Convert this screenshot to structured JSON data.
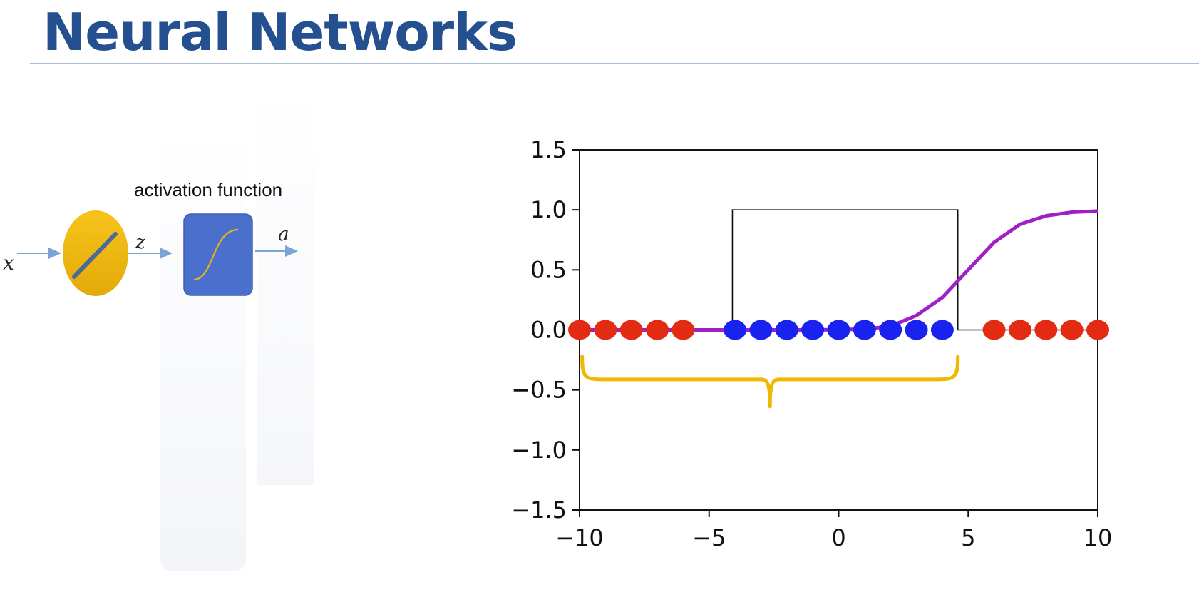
{
  "slide": {
    "title": "Neural Networks"
  },
  "diagram": {
    "input_label": "x",
    "linear_output_label": "z",
    "activation_label": "activation function",
    "output_label": "a",
    "colors": {
      "linear_node": "#f2bd10",
      "activation_box": "#4a6fcc",
      "arrow": "#7aa3d6",
      "sigmoid_curve": "#e6b422"
    }
  },
  "chart_data": {
    "type": "scatter",
    "xlim": [
      -10,
      10
    ],
    "ylim": [
      -1.5,
      1.5
    ],
    "xticks": [
      -10,
      -5,
      0,
      5,
      10
    ],
    "yticks": [
      1.5,
      1.0,
      0.5,
      0.0,
      -0.5,
      -1.0,
      -1.5
    ],
    "xtick_labels": [
      "−10",
      "−5",
      "0",
      "5",
      "10"
    ],
    "ytick_labels": [
      "1.5",
      "1.0",
      "0.5",
      "0.0",
      "−0.5",
      "−1.0",
      "−1.5"
    ],
    "grid": false,
    "series": [
      {
        "kind": "points",
        "color": "#e32a12",
        "x": [
          -10,
          -9,
          -8,
          -7,
          -6,
          6,
          7,
          8,
          9,
          10
        ],
        "y": [
          0,
          0,
          0,
          0,
          0,
          0,
          0,
          0,
          0,
          0
        ]
      },
      {
        "kind": "points",
        "color": "#1a22f0",
        "x": [
          -4,
          -3,
          -2,
          -1,
          0,
          1,
          2,
          3,
          4
        ],
        "y": [
          0,
          0,
          0,
          0,
          0,
          0,
          0,
          0,
          0
        ]
      },
      {
        "kind": "line",
        "color": "#a020c8",
        "x": [
          -10,
          -9,
          -8,
          -7,
          -6,
          -5,
          -4,
          -3,
          -2,
          -1,
          0,
          1,
          2,
          3,
          4,
          5,
          6,
          7,
          8,
          9,
          10
        ],
        "y": [
          0,
          0,
          0,
          0,
          0,
          0,
          0,
          0,
          0,
          0,
          0.002,
          0.007,
          0.03,
          0.12,
          0.27,
          0.5,
          0.73,
          0.88,
          0.95,
          0.98,
          0.99
        ]
      },
      {
        "kind": "step",
        "color": "#111111",
        "x": [
          -10,
          -4.1,
          -4.1,
          4.6,
          4.6,
          10
        ],
        "y": [
          0,
          0,
          1,
          1,
          0,
          0
        ]
      }
    ],
    "annotation": {
      "kind": "brace",
      "color": "#f0b800",
      "x_from": -9.9,
      "x_to": 4.6,
      "y": -0.4
    }
  }
}
